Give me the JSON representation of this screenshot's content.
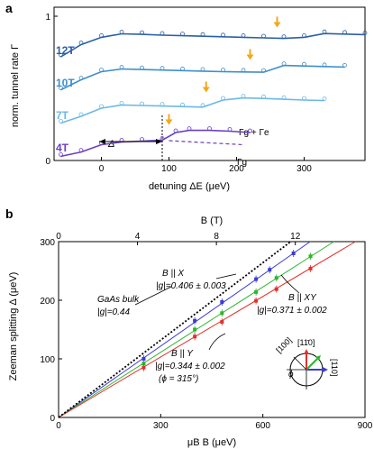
{
  "panel_a": {
    "label": "a",
    "ylabel": "norm. tunnel rate Γ",
    "xlabel": "detuning ΔE (μeV)",
    "delta_label": "Δ",
    "curve_labels": [
      "Γg + Γe",
      "Γg"
    ],
    "colors": {
      "12T": "#2a5fa8",
      "10T": "#3f8ecb",
      "7T": "#6cb8e8",
      "4T": "#6a3fc0",
      "arrow": "#f2a81d"
    }
  },
  "panel_b": {
    "label": "b",
    "ylabel": "Zeeman splitting Δ (μeV)",
    "xlabel": "μB B (μeV)",
    "top_xlabel": "B (T)",
    "annotations": {
      "bx_title": "B || X",
      "bx_g": "|g|=0.406 ± 0.003",
      "gaas_title": "GaAs bulk",
      "gaas_g": "|g|=0.44",
      "bxy_title": "B || XY",
      "bxy_g": "|g|=0.371 ± 0.002",
      "by_title": "B || Y",
      "by_g": "|g|=0.344 ± 0.002",
      "by_phi": "(ϕ = 315°)"
    },
    "inset": {
      "label_100": "[100]",
      "label_1m10": "[11̄0]",
      "label_110": "[110]",
      "label_phi": "ϕ"
    },
    "colors": {
      "X": "#3b3bd6",
      "XY": "#2bb52b",
      "Y": "#e0312b",
      "bulk": "#000000"
    }
  },
  "chart_data": [
    {
      "type": "line",
      "title": "",
      "xlabel": "detuning ΔE (μeV)",
      "ylabel": "norm. tunnel rate Γ",
      "xlim": [
        -70,
        390
      ],
      "ylim": [
        0,
        1
      ],
      "xticks": [
        0,
        100,
        200,
        300
      ],
      "yticks": [
        0,
        1
      ],
      "series": [
        {
          "name": "4T",
          "offset": 0.0,
          "x": [
            -60,
            -30,
            0,
            30,
            60,
            90,
            110,
            130,
            160,
            190,
            220
          ],
          "values": [
            0.02,
            0.18,
            0.45,
            0.55,
            0.58,
            0.62,
            0.9,
            0.98,
            0.98,
            0.95,
            0.9
          ]
        },
        {
          "name": "7T",
          "offset": 1.0,
          "x": [
            -60,
            -30,
            0,
            30,
            60,
            90,
            120,
            150,
            180,
            210,
            240,
            270,
            300,
            330
          ],
          "values": [
            0.05,
            0.3,
            0.6,
            0.72,
            0.7,
            0.68,
            0.66,
            0.64,
            0.9,
            0.98,
            0.96,
            0.93,
            0.9,
            0.88
          ]
        },
        {
          "name": "10T",
          "offset": 2.0,
          "x": [
            -60,
            -30,
            0,
            30,
            60,
            90,
            120,
            150,
            180,
            210,
            240,
            270,
            300,
            330,
            360
          ],
          "values": [
            0.08,
            0.45,
            0.75,
            0.85,
            0.83,
            0.81,
            0.79,
            0.77,
            0.75,
            0.74,
            0.73,
            0.98,
            0.96,
            0.94,
            0.92
          ]
        },
        {
          "name": "12T",
          "offset": 3.0,
          "x": [
            -60,
            -30,
            0,
            30,
            60,
            90,
            120,
            150,
            180,
            210,
            240,
            270,
            300,
            330,
            360,
            390
          ],
          "values": [
            0.1,
            0.55,
            0.82,
            0.95,
            0.93,
            0.9,
            0.88,
            0.86,
            0.84,
            0.82,
            0.8,
            0.78,
            0.82,
            0.96,
            0.94,
            0.92
          ]
        }
      ],
      "arrow_positions": {
        "4T": 100,
        "7T": 155,
        "10T": 220,
        "12T": 260
      }
    },
    {
      "type": "scatter",
      "title": "",
      "xlabel": "μB B (μeV)",
      "ylabel": "Zeeman splitting Δ (μeV)",
      "top_xlabel": "B (T)",
      "xlim": [
        0,
        900
      ],
      "ylim": [
        0,
        300
      ],
      "xticks": [
        0,
        300,
        600,
        900
      ],
      "yticks": [
        0,
        100,
        200,
        300
      ],
      "top_xticks": [
        0,
        4,
        8,
        12
      ],
      "series": [
        {
          "name": "B || X",
          "slope": 0.406,
          "x": [
            250,
            400,
            480,
            580,
            620,
            690
          ],
          "values": [
            100,
            165,
            197,
            236,
            252,
            280
          ]
        },
        {
          "name": "B || XY",
          "slope": 0.371,
          "x": [
            250,
            400,
            480,
            580,
            640,
            740
          ],
          "values": [
            92,
            150,
            178,
            214,
            238,
            275
          ]
        },
        {
          "name": "B || Y",
          "slope": 0.344,
          "x": [
            250,
            400,
            480,
            580,
            640,
            740
          ],
          "values": [
            85,
            138,
            163,
            199,
            219,
            254
          ]
        },
        {
          "name": "GaAs bulk",
          "slope": 0.44,
          "x": [],
          "values": []
        }
      ]
    }
  ]
}
